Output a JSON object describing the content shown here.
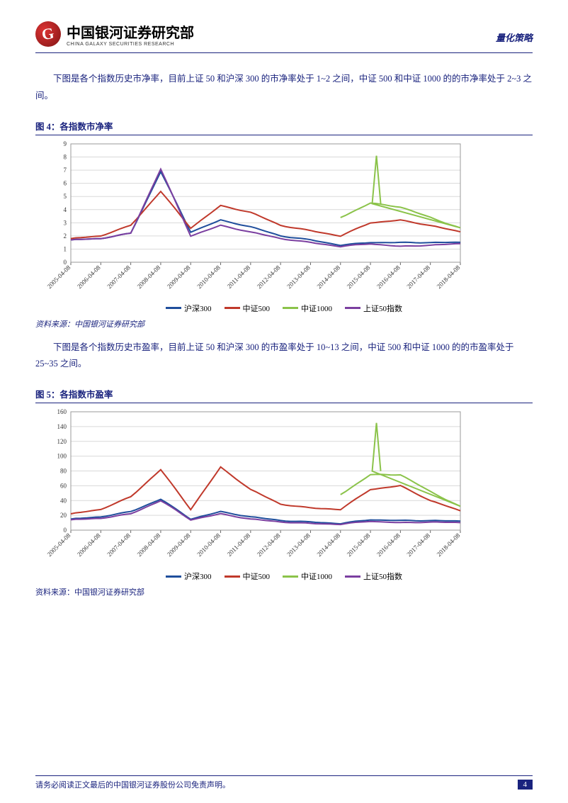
{
  "header": {
    "logo_cn": "中国银河证券研究部",
    "logo_en": "CHINA GALAXY SECURITIES RESEARCH",
    "strategy": "量化策略"
  },
  "para1": "下图是各个指数历史市净率，目前上证 50 和沪深 300 的市净率处于 1~2 之间，中证 500 和中证 1000 的的市净率处于 2~3 之间。",
  "fig4": {
    "title": "图 4：各指数市净率",
    "type": "line",
    "ylim": [
      0,
      9
    ],
    "ytick_step": 1,
    "yticks": [
      0,
      1,
      2,
      3,
      4,
      5,
      6,
      7,
      8,
      9
    ],
    "x_labels": [
      "2005-04-08",
      "2006-04-08",
      "2007-04-08",
      "2008-04-08",
      "2009-04-08",
      "2010-04-08",
      "2011-04-08",
      "2012-04-08",
      "2013-04-08",
      "2014-04-08",
      "2015-04-08",
      "2016-04-08",
      "2017-04-08",
      "2018-04-08"
    ],
    "grid_color": "#d9d9d9",
    "background_color": "#ffffff",
    "series": [
      {
        "name": "沪深300",
        "color": "#1f4e9c",
        "width": 2,
        "data": [
          1.7,
          1.8,
          2.2,
          6.9,
          2.3,
          3.2,
          2.7,
          2.0,
          1.7,
          1.3,
          1.5,
          1.5,
          1.5,
          1.5
        ]
      },
      {
        "name": "中证500",
        "color": "#c0392b",
        "width": 2,
        "data": [
          1.8,
          2.0,
          2.8,
          5.4,
          2.6,
          4.3,
          3.8,
          2.8,
          2.4,
          2.0,
          3.0,
          3.2,
          2.8,
          2.3
        ]
      },
      {
        "name": "中证1000",
        "color": "#8bc34a",
        "width": 2,
        "data": [
          null,
          null,
          null,
          null,
          null,
          null,
          null,
          null,
          null,
          3.4,
          4.5,
          4.2,
          3.4,
          2.6
        ],
        "spike": {
          "x": 10.2,
          "y": 8.1
        }
      },
      {
        "name": "上证50指数",
        "color": "#7b3fa0",
        "width": 2,
        "data": [
          1.7,
          1.8,
          2.2,
          7.1,
          2.0,
          2.8,
          2.3,
          1.8,
          1.5,
          1.2,
          1.4,
          1.2,
          1.3,
          1.4
        ]
      }
    ],
    "legend_labels": [
      "沪深300",
      "中证500",
      "中证1000",
      "上证50指数"
    ],
    "legend_colors": [
      "#1f4e9c",
      "#c0392b",
      "#8bc34a",
      "#7b3fa0"
    ]
  },
  "source4": "资料来源：中国银河证券研究部",
  "para2": "下图是各个指数历史市盈率，目前上证 50 和沪深 300 的市盈率处于 10~13 之间，中证 500 和中证 1000 的的市盈率处于 25~35 之间。",
  "fig5": {
    "title": "图 5：各指数市盈率",
    "type": "line",
    "ylim": [
      0,
      160
    ],
    "ytick_step": 20,
    "yticks": [
      0,
      20,
      40,
      60,
      80,
      100,
      120,
      140,
      160
    ],
    "x_labels": [
      "2005-04-08",
      "2006-04-08",
      "2007-04-08",
      "2008-04-08",
      "2009-04-08",
      "2010-04-08",
      "2011-04-08",
      "2012-04-08",
      "2013-04-08",
      "2014-04-08",
      "2015-04-08",
      "2016-04-08",
      "2017-04-08",
      "2018-04-08"
    ],
    "grid_color": "#d9d9d9",
    "background_color": "#ffffff",
    "series": [
      {
        "name": "沪深300",
        "color": "#1f4e9c",
        "width": 2,
        "data": [
          15,
          18,
          25,
          42,
          15,
          25,
          18,
          13,
          11,
          9,
          14,
          13,
          13,
          12
        ]
      },
      {
        "name": "中证500",
        "color": "#c0392b",
        "width": 2,
        "data": [
          22,
          28,
          45,
          82,
          28,
          85,
          55,
          35,
          30,
          28,
          55,
          60,
          40,
          26
        ]
      },
      {
        "name": "中证1000",
        "color": "#8bc34a",
        "width": 2,
        "data": [
          null,
          null,
          null,
          null,
          null,
          null,
          null,
          null,
          null,
          48,
          75,
          75,
          52,
          32
        ],
        "spike": {
          "x": 10.2,
          "y": 145
        }
      },
      {
        "name": "上证50指数",
        "color": "#7b3fa0",
        "width": 2,
        "data": [
          14,
          16,
          22,
          40,
          14,
          22,
          15,
          11,
          9,
          8,
          12,
          10,
          11,
          10
        ]
      }
    ],
    "legend_labels": [
      "沪深300",
      "中证500",
      "中证1000",
      "上证50指数"
    ],
    "legend_colors": [
      "#1f4e9c",
      "#c0392b",
      "#8bc34a",
      "#7b3fa0"
    ]
  },
  "source5": "资料来源：中国银河证券研究部",
  "footer": {
    "disclaimer": "请务必阅读正文最后的中国银河证券股份公司免责声明。",
    "page": "4"
  }
}
